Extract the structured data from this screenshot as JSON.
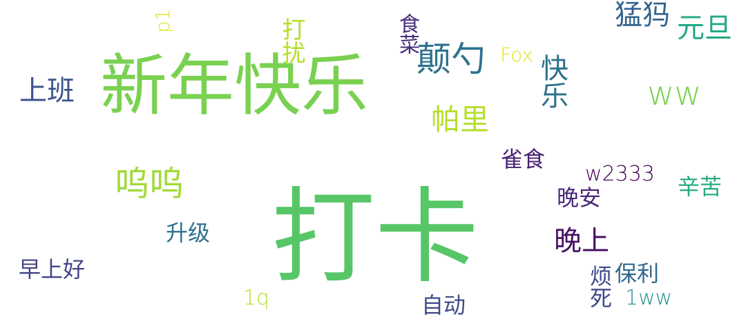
{
  "words": {
    "xinnian": {
      "text": "新年快乐",
      "color": "#7ad151"
    },
    "daka": {
      "text": "打卡",
      "color": "#56c667"
    },
    "diansao": {
      "text": "颠勺",
      "color": "#2c728e"
    },
    "mengma": {
      "text": "猛犸",
      "color": "#33638d"
    },
    "yuandan": {
      "text": "元旦",
      "color": "#22a884"
    },
    "ww": {
      "text": "ww",
      "color": "#7ad151"
    },
    "kuaile": {
      "text": "快乐",
      "color": "#2c728e"
    },
    "fox": {
      "text": "Fox",
      "color": "#dde318"
    },
    "shicai": {
      "text": "食菜",
      "color": "#472d7b"
    },
    "darao": {
      "text": "打扰",
      "color": "#b5de2b"
    },
    "p1": {
      "text": "p1",
      "color": "#dde318"
    },
    "shangban": {
      "text": "上班",
      "color": "#3b528b"
    },
    "pali": {
      "text": "帕里",
      "color": "#b5de2b"
    },
    "queshi": {
      "text": "雀食",
      "color": "#482173"
    },
    "wuwu": {
      "text": "呜呜",
      "color": "#a0da39"
    },
    "w2333": {
      "text": "w2333",
      "color": "#440154"
    },
    "xinku": {
      "text": "辛苦",
      "color": "#25ab82"
    },
    "wanan": {
      "text": "晚安",
      "color": "#482878"
    },
    "shengji": {
      "text": "升级",
      "color": "#2d708e"
    },
    "wanshang": {
      "text": "晚上",
      "color": "#471063"
    },
    "zaoshanghao": {
      "text": "早上好",
      "color": "#414487"
    },
    "baoli": {
      "text": "保利",
      "color": "#31688e"
    },
    "fansi": {
      "text": "烦死",
      "color": "#3e4989"
    },
    "oneww": {
      "text": "1ww",
      "color": "#21918c"
    },
    "oneq": {
      "text": "1q",
      "color": "#b5de2b"
    },
    "zidong": {
      "text": "自动",
      "color": "#3e4a89"
    }
  }
}
